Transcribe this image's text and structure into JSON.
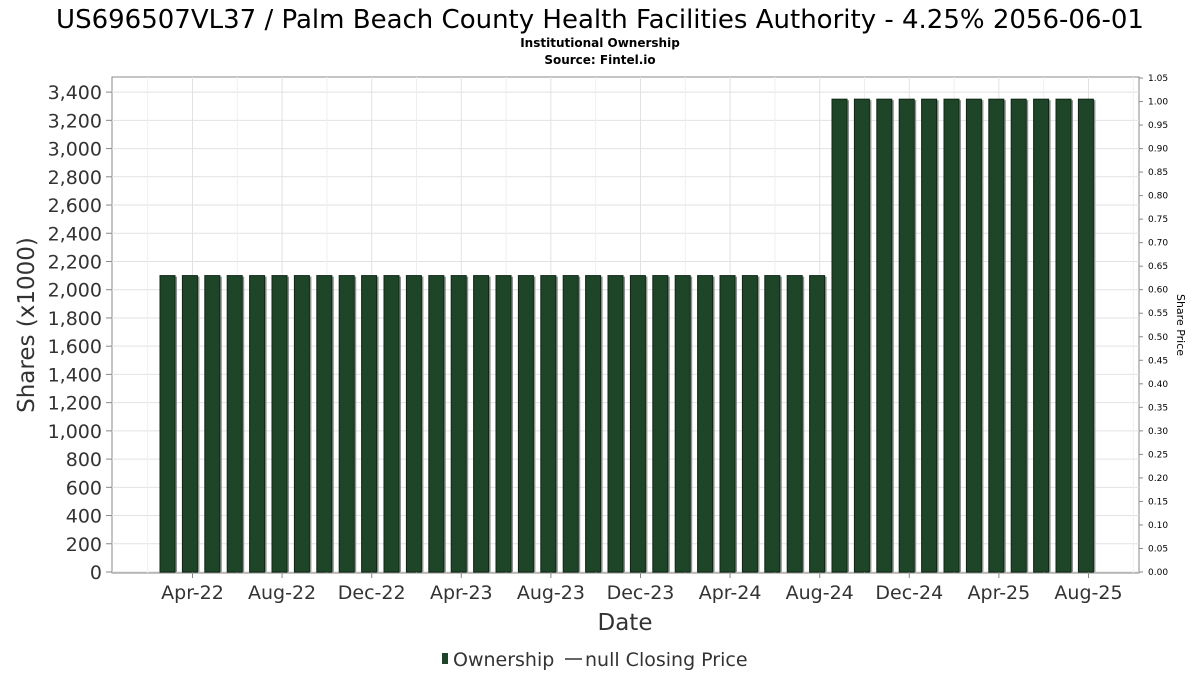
{
  "chart_data": {
    "type": "bar",
    "title": "US696507VL37 / Palm Beach County Health Facilities Authority - 4.25% 2056-06-01",
    "subtitle_lines": [
      "Institutional Ownership",
      "Source: Fintel.io"
    ],
    "xlabel": "Date",
    "ylabel": "Shares (x1000)",
    "y2label": "Share Price",
    "ylim": [
      0,
      3500
    ],
    "y2lim": [
      0,
      1.05
    ],
    "yticks": [
      "0",
      "200",
      "400",
      "600",
      "800",
      "1,000",
      "1,200",
      "1,400",
      "1,600",
      "1,800",
      "2,000",
      "2,200",
      "2,400",
      "2,600",
      "2,800",
      "3,000",
      "3,200",
      "3,400"
    ],
    "ytick_values": [
      0,
      200,
      400,
      600,
      800,
      1000,
      1200,
      1400,
      1600,
      1800,
      2000,
      2200,
      2400,
      2600,
      2800,
      3000,
      3200,
      3400
    ],
    "y2ticks": [
      "0.00",
      "0.05",
      "0.10",
      "0.15",
      "0.20",
      "0.25",
      "0.30",
      "0.35",
      "0.40",
      "0.45",
      "0.50",
      "0.55",
      "0.60",
      "0.65",
      "0.70",
      "0.75",
      "0.80",
      "0.85",
      "0.90",
      "0.95",
      "1.00",
      "1.05"
    ],
    "y2tick_values": [
      0,
      0.05,
      0.1,
      0.15,
      0.2,
      0.25,
      0.3,
      0.35,
      0.4,
      0.45,
      0.5,
      0.55,
      0.6,
      0.65,
      0.7,
      0.75,
      0.8,
      0.85,
      0.9,
      0.95,
      1.0,
      1.05
    ],
    "xticks": [
      "Apr-22",
      "Aug-22",
      "Dec-22",
      "Apr-23",
      "Aug-23",
      "Dec-23",
      "Apr-24",
      "Aug-24",
      "Dec-24",
      "Apr-25",
      "Aug-25"
    ],
    "series": [
      {
        "name": "Ownership",
        "color": "#1e4528",
        "values": [
          2100,
          2100,
          2100,
          2100,
          2100,
          2100,
          2100,
          2100,
          2100,
          2100,
          2100,
          2100,
          2100,
          2100,
          2100,
          2100,
          2100,
          2100,
          2100,
          2100,
          2100,
          2100,
          2100,
          2100,
          2100,
          2100,
          2100,
          2100,
          2100,
          2100,
          3350,
          3350,
          3350,
          3350,
          3350,
          3350,
          3350,
          3350,
          3350,
          3350,
          3350,
          3350
        ]
      }
    ],
    "legend": {
      "placement": "bottom",
      "items": [
        {
          "label": "Ownership",
          "marker": "bar",
          "color": "#1e4528"
        },
        {
          "label": "null Closing Price",
          "marker": "line",
          "color": "#333333"
        }
      ]
    },
    "grid": true
  }
}
